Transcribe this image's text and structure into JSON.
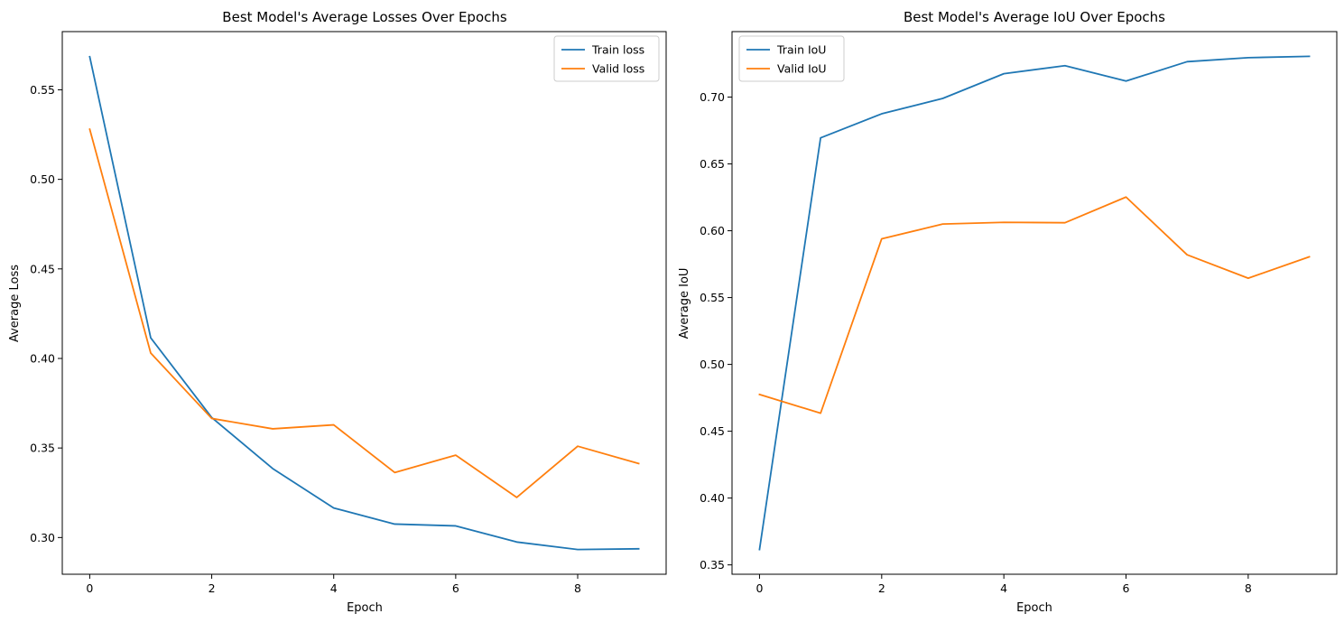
{
  "figure": {
    "background": "#ffffff"
  },
  "chart_data": [
    {
      "type": "line",
      "title": "Best Model's Average Losses Over Epochs",
      "xlabel": "Epoch",
      "ylabel": "Average Loss",
      "xlim": [
        -0.45,
        9.45
      ],
      "ylim": [
        0.2795,
        0.5825
      ],
      "xticks": [
        0,
        2,
        4,
        6,
        8
      ],
      "xtick_labels": [
        "0",
        "2",
        "4",
        "6",
        "8"
      ],
      "yticks": [
        0.3,
        0.35,
        0.4,
        0.45,
        0.5,
        0.55
      ],
      "ytick_labels": [
        "0.30",
        "0.35",
        "0.40",
        "0.45",
        "0.50",
        "0.55"
      ],
      "grid": false,
      "legend_position": "upper right",
      "x": [
        0,
        1,
        2,
        3,
        4,
        5,
        6,
        7,
        8,
        9
      ],
      "series": [
        {
          "name": "Train loss",
          "color": "#1f77b4",
          "values": [
            0.5685,
            0.4115,
            0.367,
            0.3385,
            0.3165,
            0.3075,
            0.3065,
            0.2975,
            0.2933,
            0.2937
          ]
        },
        {
          "name": "Valid loss",
          "color": "#ff7f0e",
          "values": [
            0.528,
            0.403,
            0.3665,
            0.3607,
            0.3629,
            0.3363,
            0.346,
            0.3224,
            0.351,
            0.3413
          ]
        }
      ]
    },
    {
      "type": "line",
      "title": "Best Model's Average IoU Over Epochs",
      "xlabel": "Epoch",
      "ylabel": "Average IoU",
      "xlim": [
        -0.45,
        9.45
      ],
      "ylim": [
        0.343,
        0.749
      ],
      "xticks": [
        0,
        2,
        4,
        6,
        8
      ],
      "xtick_labels": [
        "0",
        "2",
        "4",
        "6",
        "8"
      ],
      "yticks": [
        0.35,
        0.4,
        0.45,
        0.5,
        0.55,
        0.6,
        0.65,
        0.7
      ],
      "ytick_labels": [
        "0.35",
        "0.40",
        "0.45",
        "0.50",
        "0.55",
        "0.60",
        "0.65",
        "0.70"
      ],
      "grid": false,
      "legend_position": "upper left",
      "x": [
        0,
        1,
        2,
        3,
        4,
        5,
        6,
        7,
        8,
        9
      ],
      "series": [
        {
          "name": "Train IoU",
          "color": "#1f77b4",
          "values": [
            0.3615,
            0.6695,
            0.6875,
            0.699,
            0.7175,
            0.7235,
            0.712,
            0.7265,
            0.7295,
            0.7305
          ]
        },
        {
          "name": "Valid IoU",
          "color": "#ff7f0e",
          "values": [
            0.4775,
            0.4635,
            0.594,
            0.605,
            0.6063,
            0.606,
            0.6252,
            0.582,
            0.5645,
            0.5805
          ]
        }
      ]
    }
  ]
}
